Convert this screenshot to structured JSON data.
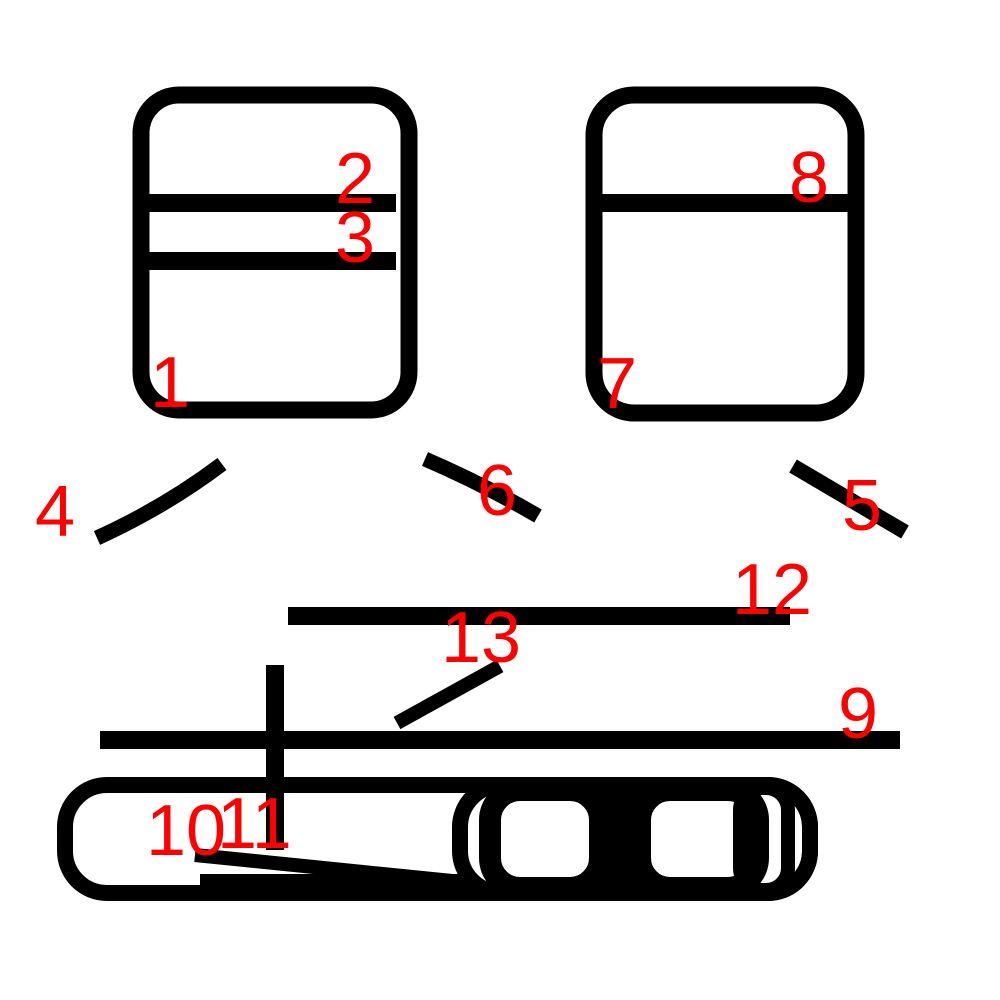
{
  "diagram": {
    "colors": {
      "stroke": "#000000",
      "label": "#ff0000",
      "background": "#ffffff"
    },
    "labels": [
      {
        "id": "1",
        "text": "1"
      },
      {
        "id": "2",
        "text": "2"
      },
      {
        "id": "3",
        "text": "3"
      },
      {
        "id": "4",
        "text": "4"
      },
      {
        "id": "5",
        "text": "5"
      },
      {
        "id": "6",
        "text": "6"
      },
      {
        "id": "7",
        "text": "7"
      },
      {
        "id": "8",
        "text": "8"
      },
      {
        "id": "9",
        "text": "9"
      },
      {
        "id": "10",
        "text": "10"
      },
      {
        "id": "11",
        "text": "11"
      },
      {
        "id": "12",
        "text": "12"
      },
      {
        "id": "13",
        "text": "13"
      }
    ]
  }
}
